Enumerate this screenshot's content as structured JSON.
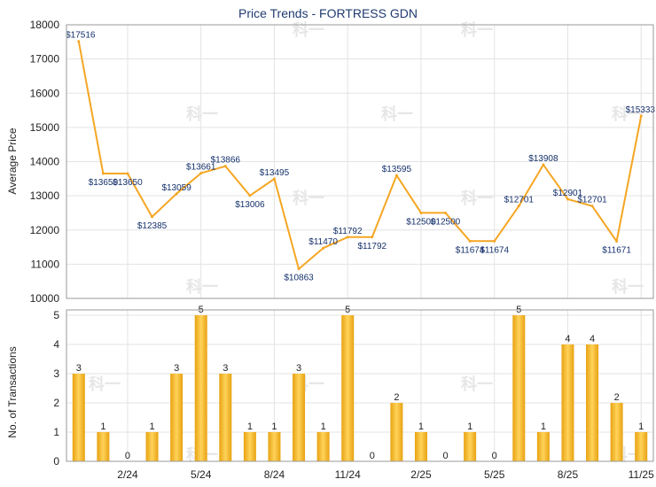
{
  "chart_data": [
    {
      "type": "line",
      "title": "Price Trends - FORTRESS GDN",
      "xlabel": "",
      "ylabel": "Average Price",
      "ylim": [
        10000,
        18000
      ],
      "yticks": [
        "10000",
        "11000",
        "12000",
        "13000",
        "14000",
        "15000",
        "16000",
        "17000",
        "18000"
      ],
      "x_tick_labels": [
        {
          "index": 2,
          "label": "2/24"
        },
        {
          "index": 5,
          "label": "5/24"
        },
        {
          "index": 8,
          "label": "8/24"
        },
        {
          "index": 11,
          "label": "11/24"
        },
        {
          "index": 14,
          "label": "2/25"
        },
        {
          "index": 17,
          "label": "5/25"
        },
        {
          "index": 20,
          "label": "8/25"
        },
        {
          "index": 23,
          "label": "11/25"
        }
      ],
      "points": [
        {
          "i": 0,
          "value": 17516,
          "label": "$17516"
        },
        {
          "i": 1,
          "value": 13650,
          "label": "$13650"
        },
        {
          "i": 2,
          "value": 13650,
          "label": "$13650"
        },
        {
          "i": 3,
          "value": 12385,
          "label": "$12385"
        },
        {
          "i": 4,
          "value": 13059,
          "label": "$13059"
        },
        {
          "i": 5,
          "value": 13661,
          "label": "$13661"
        },
        {
          "i": 6,
          "value": 13866,
          "label": "$13866"
        },
        {
          "i": 7,
          "value": 13006,
          "label": "$13006"
        },
        {
          "i": 8,
          "value": 13495,
          "label": "$13495"
        },
        {
          "i": 9,
          "value": 10863,
          "label": "$10863"
        },
        {
          "i": 10,
          "value": 11470,
          "label": "$11470"
        },
        {
          "i": 11,
          "value": 11792,
          "label": "$11792"
        },
        {
          "i": 12,
          "value": 11792,
          "label": "$11792"
        },
        {
          "i": 13,
          "value": 13595,
          "label": "$13595"
        },
        {
          "i": 14,
          "value": 12500,
          "label": "$12500"
        },
        {
          "i": 15,
          "value": 12500,
          "label": "$12500"
        },
        {
          "i": 16,
          "value": 11674,
          "label": "$11674"
        },
        {
          "i": 17,
          "value": 11674,
          "label": "$11674"
        },
        {
          "i": 18,
          "value": 12701,
          "label": "$12701"
        },
        {
          "i": 19,
          "value": 13908,
          "label": "$13908"
        },
        {
          "i": 20,
          "value": 12901,
          "label": "$12901"
        },
        {
          "i": 21,
          "value": 12701,
          "label": "$12701"
        },
        {
          "i": 22,
          "value": 11671,
          "label": "$11671"
        },
        {
          "i": 23,
          "value": 15333,
          "label": "$15333"
        }
      ],
      "line_color": "#f5a623"
    },
    {
      "type": "bar",
      "title": "",
      "xlabel": "",
      "ylabel": "No. of Transactions",
      "ylim": [
        0,
        5
      ],
      "yticks": [
        "0",
        "1",
        "2",
        "3",
        "4",
        "5"
      ],
      "values": [
        3,
        1,
        0,
        1,
        3,
        5,
        3,
        1,
        1,
        3,
        1,
        5,
        0,
        2,
        1,
        0,
        1,
        0,
        5,
        1,
        4,
        4,
        2,
        1
      ],
      "value_labels": [
        "3",
        "1",
        "0",
        "1",
        "3",
        "5",
        "3",
        "1",
        "1",
        "3",
        "1",
        "5",
        "0",
        "2",
        "1",
        "0",
        "1",
        "0",
        "5",
        "1",
        "4",
        "4",
        "2",
        "1"
      ],
      "bar_color": "#f5b21f"
    }
  ],
  "watermark_text": "科一"
}
